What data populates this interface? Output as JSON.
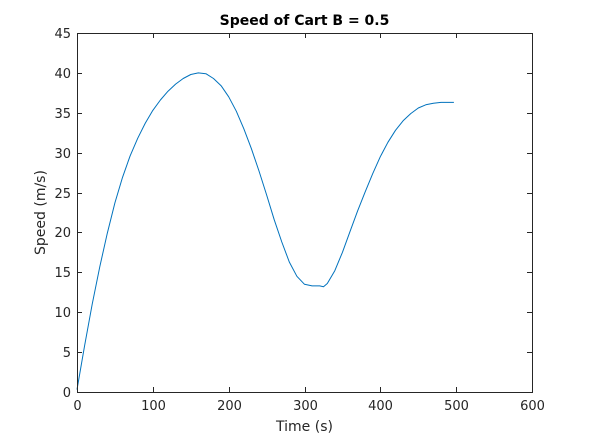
{
  "chart_data": {
    "type": "line",
    "title": "Speed of Cart B = 0.5",
    "xlabel": "Time (s)",
    "ylabel": "Speed (m/s)",
    "xlim": [
      0,
      600
    ],
    "ylim": [
      0,
      45
    ],
    "xticks": [
      0,
      100,
      200,
      300,
      400,
      500,
      600
    ],
    "yticks": [
      0,
      5,
      10,
      15,
      20,
      25,
      30,
      35,
      40,
      45
    ],
    "grid": false,
    "colors": {
      "line": "#0072bd",
      "axes": "#262626",
      "background": "#ffffff"
    },
    "series": [
      {
        "x": [
          0,
          10,
          20,
          30,
          40,
          50,
          60,
          70,
          80,
          90,
          100,
          110,
          120,
          130,
          140,
          150,
          160,
          170,
          180,
          190,
          200,
          210,
          220,
          230,
          240,
          250,
          260,
          270,
          280,
          290,
          300,
          310,
          320,
          325,
          330,
          340,
          350,
          360,
          370,
          380,
          390,
          400,
          410,
          420,
          430,
          440,
          450,
          460,
          470,
          480,
          490,
          497
        ],
        "y": [
          0.3,
          5.8,
          11.0,
          15.7,
          19.9,
          23.7,
          26.9,
          29.6,
          31.8,
          33.7,
          35.3,
          36.6,
          37.7,
          38.6,
          39.3,
          39.8,
          40.0,
          39.9,
          39.3,
          38.4,
          37.0,
          35.2,
          33.0,
          30.5,
          27.7,
          24.7,
          21.6,
          18.8,
          16.3,
          14.5,
          13.5,
          13.3,
          13.3,
          13.2,
          13.6,
          15.2,
          17.5,
          20.1,
          22.7,
          25.1,
          27.4,
          29.5,
          31.3,
          32.8,
          34.0,
          34.9,
          35.6,
          36.0,
          36.2,
          36.3,
          36.3,
          36.3
        ]
      }
    ]
  }
}
